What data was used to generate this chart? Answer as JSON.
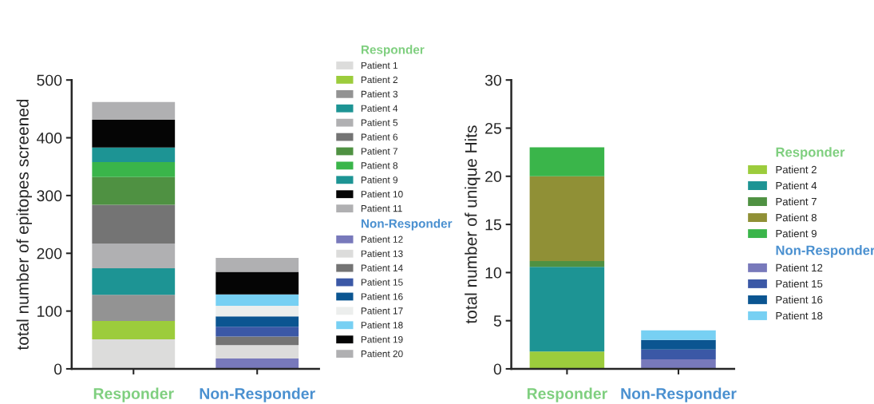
{
  "chart_data": [
    {
      "type": "bar",
      "stacked": true,
      "ylabel": "total number of epitopes screened",
      "categories": [
        "Responder",
        "Non-Responder"
      ],
      "colors": [
        "#7fcf7f",
        "#4a90d0"
      ],
      "ylim": [
        0,
        500
      ],
      "yticks": [
        0,
        100,
        200,
        300,
        400,
        500
      ],
      "legend": "right",
      "series": [
        {
          "name": "Patient 1",
          "color": "#dcdcdb",
          "values": [
            51,
            null
          ]
        },
        {
          "name": "Patient 2",
          "color": "#9ccc3c",
          "values": [
            32,
            null
          ]
        },
        {
          "name": "Patient 3",
          "color": "#939393",
          "values": [
            45,
            null
          ]
        },
        {
          "name": "Patient 4",
          "color": "#1d9494",
          "values": [
            46,
            null
          ]
        },
        {
          "name": "Patient 5",
          "color": "#b0b0b2",
          "values": [
            43,
            null
          ]
        },
        {
          "name": "Patient 6",
          "color": "#747474",
          "values": [
            67,
            null
          ]
        },
        {
          "name": "Patient 7",
          "color": "#4f9142",
          "values": [
            48,
            null
          ]
        },
        {
          "name": "Patient 8",
          "color": "#3ab54a",
          "values": [
            26,
            null
          ]
        },
        {
          "name": "Patient 9",
          "color": "#1d9494",
          "values": [
            25,
            null
          ]
        },
        {
          "name": "Patient 10",
          "color": "#050505",
          "values": [
            48,
            null
          ]
        },
        {
          "name": "Patient 11",
          "color": "#b0b0b2",
          "values": [
            31,
            null
          ]
        },
        {
          "name": "Patient 12",
          "color": "#7879bb",
          "values": [
            null,
            18
          ]
        },
        {
          "name": "Patient 13",
          "color": "#dcdcdb",
          "values": [
            null,
            23
          ]
        },
        {
          "name": "Patient 14",
          "color": "#747474",
          "values": [
            null,
            15
          ]
        },
        {
          "name": "Patient 15",
          "color": "#3b58a6",
          "values": [
            null,
            17
          ]
        },
        {
          "name": "Patient 16",
          "color": "#0b5591",
          "values": [
            null,
            18
          ]
        },
        {
          "name": "Patient 17",
          "color": "#eceeed",
          "values": [
            null,
            18
          ]
        },
        {
          "name": "Patient 18",
          "color": "#77d0f3",
          "values": [
            null,
            20
          ]
        },
        {
          "name": "Patient 19",
          "color": "#050505",
          "values": [
            null,
            39
          ]
        },
        {
          "name": "Patient 20",
          "color": "#b0b0b2",
          "values": [
            null,
            24
          ]
        }
      ]
    },
    {
      "type": "bar",
      "stacked": true,
      "ylabel": "total number of unique Hits",
      "categories": [
        "Responder",
        "Non-Responder"
      ],
      "colors": [
        "#7fcf7f",
        "#4a90d0"
      ],
      "ylim": [
        0,
        30
      ],
      "yticks": [
        0,
        5,
        10,
        15,
        20,
        25,
        30
      ],
      "legend": "right",
      "series": [
        {
          "name": "Patient 2",
          "color": "#9ccc3c",
          "values": [
            1.8,
            null
          ]
        },
        {
          "name": "Patient 4",
          "color": "#1d9494",
          "values": [
            8.8,
            null
          ]
        },
        {
          "name": "Patient 7",
          "color": "#4f9142",
          "values": [
            0.6,
            null
          ]
        },
        {
          "name": "Patient 8",
          "color": "#909036",
          "values": [
            8.8,
            null
          ]
        },
        {
          "name": "Patient 9",
          "color": "#3ab54a",
          "values": [
            3,
            null
          ]
        },
        {
          "name": "Patient 12",
          "color": "#7879bb",
          "values": [
            null,
            1
          ]
        },
        {
          "name": "Patient 15",
          "color": "#3b58a6",
          "values": [
            null,
            1
          ]
        },
        {
          "name": "Patient 16",
          "color": "#0b5591",
          "values": [
            null,
            1
          ]
        },
        {
          "name": "Patient 18",
          "color": "#77d0f3",
          "values": [
            null,
            1
          ]
        }
      ]
    }
  ]
}
